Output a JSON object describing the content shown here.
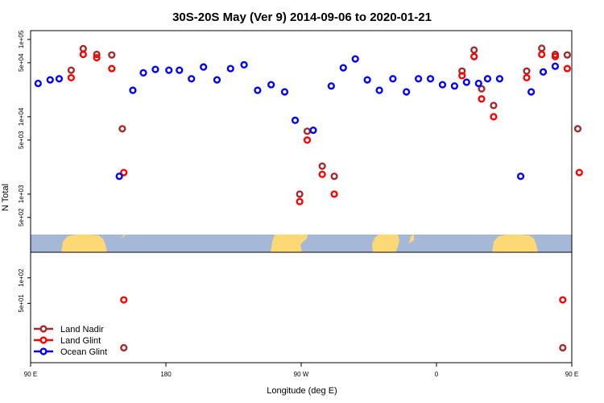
{
  "chart_data": {
    "type": "scatter",
    "title": "30S-20S May (Ver 9)   2014-09-06 to 2020-01-21",
    "xlabel": "Longitude (deg E)",
    "ylabel": "N Total",
    "xlim": [
      90,
      450
    ],
    "x_ticks": [
      {
        "value": 90,
        "label": "90 E"
      },
      {
        "value": 180,
        "label": "180"
      },
      {
        "value": 270,
        "label": "90 W"
      },
      {
        "value": 360,
        "label": "0"
      },
      {
        "value": 450,
        "label": "90 E"
      },
      {
        "value": 540,
        "label": "180"
      }
    ],
    "top_panel": {
      "scale": "log",
      "ylim": [
        300,
        130000
      ],
      "y_ticks": [
        {
          "value": 500,
          "label": "5e+02"
        },
        {
          "value": 1000,
          "label": "1e+03"
        },
        {
          "value": 5000,
          "label": "5e+03"
        },
        {
          "value": 10000,
          "label": "1e+04"
        },
        {
          "value": 50000,
          "label": "5e+04"
        },
        {
          "value": 100000,
          "label": "1e+05"
        }
      ]
    },
    "bottom_panel": {
      "scale": "log",
      "ylim": [
        10,
        200
      ],
      "y_ticks": [
        {
          "value": 50,
          "label": "5e+01"
        },
        {
          "value": 100,
          "label": "1e+02"
        }
      ]
    },
    "legend": {
      "position": "bottom-left",
      "entries": [
        "Land Nadir",
        "Land Glint",
        "Ocean Glint"
      ]
    },
    "colors": {
      "land_nadir": "#a52a2a",
      "land_glint": "#ff0000",
      "ocean_glint": "#0000ff",
      "ocean": "#a5b8d8",
      "land": "#fcd975"
    },
    "series": [
      {
        "name": "Land Nadir",
        "panel": "top",
        "points": [
          [
            117,
            40000
          ],
          [
            125,
            76000
          ],
          [
            134,
            64000
          ],
          [
            144,
            63000
          ],
          [
            151,
            7000
          ],
          [
            269,
            1000
          ],
          [
            274,
            6500
          ],
          [
            284,
            2300
          ],
          [
            292,
            1700
          ],
          [
            377,
            39000
          ],
          [
            385,
            73000
          ],
          [
            390,
            23000
          ],
          [
            398,
            14000
          ],
          [
            420,
            39000
          ],
          [
            430,
            77000
          ],
          [
            439,
            64000
          ],
          [
            447,
            63000
          ],
          [
            454,
            7000
          ]
        ]
      },
      {
        "name": "Land Glint",
        "panel": "top",
        "points": [
          [
            117,
            32000
          ],
          [
            125,
            64000
          ],
          [
            134,
            58000
          ],
          [
            144,
            42000
          ],
          [
            152,
            1900
          ],
          [
            269,
            800
          ],
          [
            274,
            5000
          ],
          [
            284,
            1800
          ],
          [
            292,
            1000
          ],
          [
            377,
            34000
          ],
          [
            385,
            60000
          ],
          [
            390,
            17000
          ],
          [
            398,
            10000
          ],
          [
            420,
            32000
          ],
          [
            430,
            64000
          ],
          [
            439,
            60000
          ],
          [
            447,
            42000
          ],
          [
            455,
            1900
          ]
        ]
      },
      {
        "name": "Ocean Glint",
        "panel": "top",
        "points": [
          [
            95,
            27000
          ],
          [
            103,
            30000
          ],
          [
            109,
            31000
          ],
          [
            149,
            1700
          ],
          [
            158,
            22000
          ],
          [
            165,
            37000
          ],
          [
            173,
            41000
          ],
          [
            182,
            40000
          ],
          [
            189,
            40000
          ],
          [
            197,
            31000
          ],
          [
            205,
            44000
          ],
          [
            214,
            30000
          ],
          [
            223,
            42000
          ],
          [
            232,
            47000
          ],
          [
            241,
            22000
          ],
          [
            250,
            26000
          ],
          [
            259,
            21000
          ],
          [
            266,
            9000
          ],
          [
            278,
            6700
          ],
          [
            290,
            25000
          ],
          [
            298,
            43000
          ],
          [
            306,
            56000
          ],
          [
            314,
            30000
          ],
          [
            322,
            22000
          ],
          [
            331,
            31000
          ],
          [
            340,
            21000
          ],
          [
            348,
            31000
          ],
          [
            356,
            31000
          ],
          [
            364,
            26000
          ],
          [
            372,
            25000
          ],
          [
            380,
            28000
          ],
          [
            388,
            27000
          ],
          [
            394,
            31000
          ],
          [
            402,
            31000
          ],
          [
            416,
            1700
          ],
          [
            423,
            21000
          ],
          [
            431,
            38000
          ],
          [
            439,
            45000
          ]
        ]
      },
      {
        "name": "Land Nadir",
        "panel": "bottom",
        "points": [
          [
            152,
            15
          ],
          [
            444,
            15
          ]
        ]
      },
      {
        "name": "Land Glint",
        "panel": "bottom",
        "points": [
          [
            152,
            55
          ],
          [
            444,
            55
          ]
        ]
      }
    ]
  }
}
